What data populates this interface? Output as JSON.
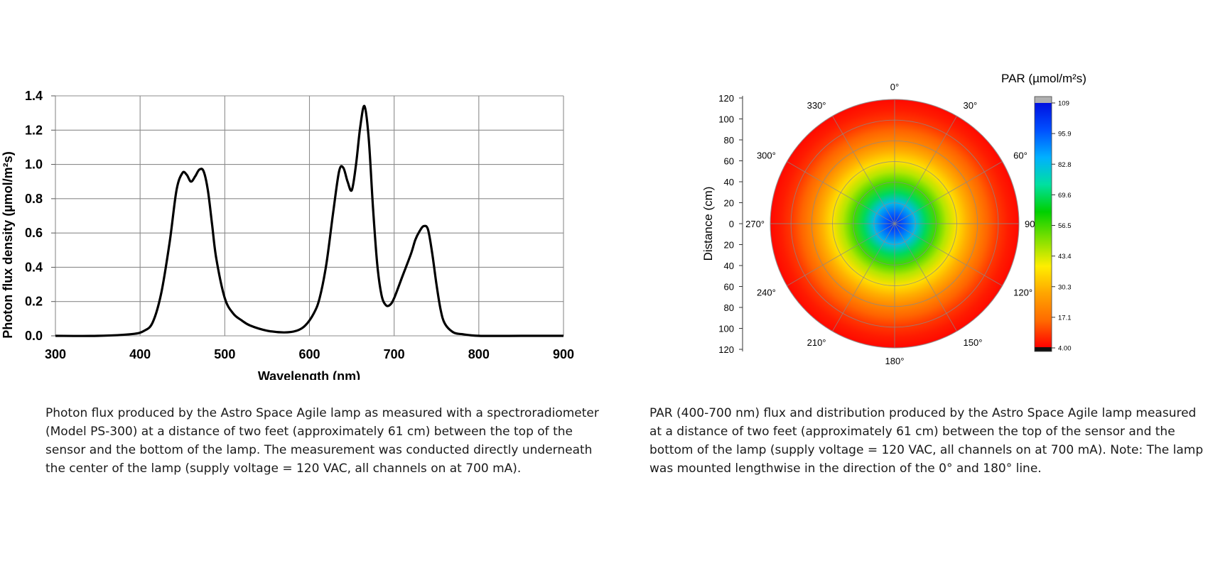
{
  "captions": {
    "left": "Photon flux produced by the Astro Space Agile lamp as measured with a spectroradiometer (Model PS-300) at a distance of two feet (approximately 61 cm) between the top of the sensor and the bottom of the lamp. The measurement was conducted directly underneath the center of the lamp (supply voltage = 120 VAC, all channels on at 700 mA).",
    "right": "PAR (400-700 nm) flux and distribution produced by the Astro Space Agile lamp measured at a distance of two feet (approximately 61 cm) between the top of the sensor and the bottom of the lamp (supply voltage = 120 VAC, all channels on at 700 mA). Note: The lamp was mounted lengthwise in the direction of the 0° and 180° line."
  },
  "chart_data": [
    {
      "type": "line",
      "xlabel": "Wavelength (nm)",
      "ylabel": "Photon flux density (µmol/m²s)",
      "xlim": [
        300,
        900
      ],
      "ylim": [
        0,
        1.4
      ],
      "x_ticks": [
        300,
        400,
        500,
        600,
        700,
        800,
        900
      ],
      "y_ticks": [
        "0.0",
        "0.2",
        "0.4",
        "0.6",
        "0.8",
        "1.0",
        "1.2",
        "1.4"
      ],
      "grid": true,
      "line_color": "#000000",
      "series": [
        {
          "x": [
            300,
            350,
            390,
            405,
            415,
            425,
            435,
            443,
            450,
            455,
            460,
            465,
            470,
            475,
            480,
            485,
            490,
            500,
            510,
            520,
            530,
            550,
            570,
            585,
            595,
            605,
            612,
            620,
            628,
            635,
            640,
            645,
            650,
            655,
            660,
            665,
            670,
            675,
            680,
            685,
            690,
            695,
            700,
            710,
            720,
            725,
            730,
            735,
            740,
            745,
            750,
            755,
            760,
            770,
            780,
            800,
            850,
            900
          ],
          "y": [
            0.0,
            0.0,
            0.01,
            0.03,
            0.08,
            0.25,
            0.55,
            0.85,
            0.95,
            0.94,
            0.9,
            0.93,
            0.97,
            0.96,
            0.85,
            0.65,
            0.45,
            0.22,
            0.13,
            0.09,
            0.06,
            0.03,
            0.02,
            0.03,
            0.06,
            0.13,
            0.22,
            0.42,
            0.72,
            0.96,
            0.98,
            0.9,
            0.85,
            1.0,
            1.22,
            1.34,
            1.15,
            0.75,
            0.42,
            0.24,
            0.18,
            0.18,
            0.22,
            0.35,
            0.48,
            0.56,
            0.61,
            0.64,
            0.62,
            0.48,
            0.3,
            0.15,
            0.07,
            0.02,
            0.01,
            0.0,
            0.0,
            0.0
          ]
        }
      ]
    },
    {
      "type": "heatmap",
      "subtype": "polar",
      "colorbar_title": "PAR (µmol/m²s)",
      "ylabel": "Distance (cm)",
      "radius_max": 120,
      "radial_ticks": [
        "120",
        "100",
        "80",
        "60",
        "40",
        "20",
        "0",
        "20",
        "40",
        "60",
        "80",
        "100",
        "120"
      ],
      "angle_labels": [
        "0°",
        "30°",
        "60°",
        "90°",
        "120°",
        "150°",
        "180°",
        "210°",
        "240°",
        "270°",
        "300°",
        "330°"
      ],
      "colorbar_ticks": [
        "109",
        "95.9",
        "82.8",
        "69.6",
        "56.5",
        "43.4",
        "30.3",
        "17.1",
        "4.00"
      ],
      "colorbar_range": [
        4.0,
        109
      ],
      "radial_profile": {
        "r": [
          0,
          5,
          10,
          20,
          30,
          40,
          50,
          60,
          70,
          80,
          90,
          100,
          110,
          120
        ],
        "par": [
          102,
          100,
          95,
          83,
          69,
          56,
          46,
          37,
          29,
          21,
          15,
          10,
          7,
          5
        ]
      },
      "colors": {
        "over": "#b0b0b0",
        "under": "#111111",
        "stops": [
          "#ff0000",
          "#ff6a00",
          "#ffa500",
          "#ffee00",
          "#80e000",
          "#00d000",
          "#00e0a0",
          "#00b0ff",
          "#0050ff",
          "#0010e0"
        ]
      }
    }
  ]
}
